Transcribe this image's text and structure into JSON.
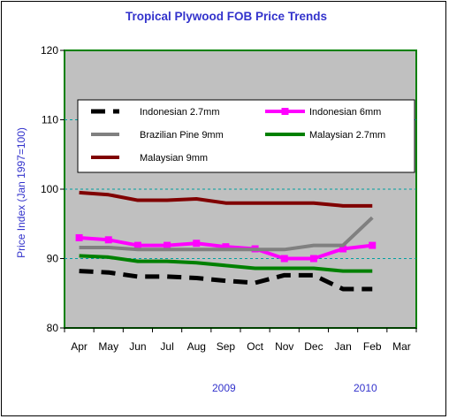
{
  "chart_data": {
    "type": "line",
    "title": "Tropical Plywood FOB Price Trends",
    "ylabel": "Price Index (Jan 1997=100)",
    "ylim": [
      80,
      120
    ],
    "yticks": [
      80,
      90,
      100,
      110,
      120
    ],
    "categories": [
      "Apr",
      "May",
      "Jun",
      "Jul",
      "Aug",
      "Sep",
      "Oct",
      "Nov",
      "Dec",
      "Jan",
      "Feb",
      "Mar"
    ],
    "year_labels": [
      "2009",
      "2010"
    ],
    "grid": true,
    "legend_position": "inside-top",
    "plot_background": "#c0c0c0",
    "series": [
      {
        "name": "Indonesian 2.7mm",
        "color": "#000000",
        "dash": true,
        "values": [
          88.2,
          88.0,
          87.4,
          87.4,
          87.2,
          86.8,
          86.5,
          87.6,
          87.6,
          85.6,
          85.6,
          null
        ]
      },
      {
        "name": "Indonesian 6mm",
        "color": "#ff00ff",
        "marker": "square",
        "values": [
          93.0,
          92.7,
          91.9,
          91.9,
          92.2,
          91.7,
          91.4,
          90.0,
          90.0,
          91.4,
          91.9,
          null
        ]
      },
      {
        "name": "Brazilian Pine 9mm",
        "color": "#808080",
        "values": [
          91.6,
          91.6,
          91.3,
          91.3,
          91.3,
          91.3,
          91.3,
          91.3,
          91.9,
          91.9,
          95.9,
          null
        ]
      },
      {
        "name": "Malaysian 2.7mm",
        "color": "#008000",
        "values": [
          90.4,
          90.2,
          89.6,
          89.6,
          89.4,
          89.0,
          88.6,
          88.6,
          88.6,
          88.2,
          88.2,
          null
        ]
      },
      {
        "name": "Malaysian 9mm",
        "color": "#800000",
        "values": [
          99.5,
          99.2,
          98.4,
          98.4,
          98.6,
          98.0,
          98.0,
          98.0,
          98.0,
          97.6,
          97.6,
          null
        ]
      }
    ]
  }
}
